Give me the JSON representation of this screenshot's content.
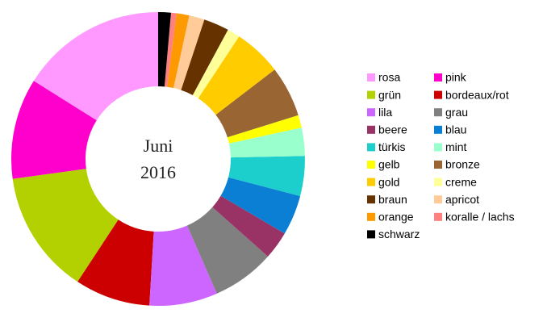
{
  "chart_data": {
    "type": "donut",
    "center_text": [
      "Juni",
      "2016"
    ],
    "categories": [
      "rosa",
      "pink",
      "grün",
      "bordeaux/rot",
      "lila",
      "grau",
      "beere",
      "blau",
      "türkis",
      "mint",
      "gelb",
      "bronze",
      "gold",
      "creme",
      "braun",
      "apricot",
      "orange",
      "koralle / lachs",
      "schwarz"
    ],
    "values": [
      16.1,
      11.1,
      13.6,
      8.3,
      7.5,
      6.9,
      3.1,
      4.4,
      4.4,
      3.1,
      1.4,
      5.6,
      5.3,
      1.4,
      2.8,
      1.7,
      1.4,
      0.6,
      1.4
    ],
    "colors": [
      "#ff99ff",
      "#ff00cc",
      "#b3d100",
      "#cc0000",
      "#cc66ff",
      "#808080",
      "#993366",
      "#0a7fd4",
      "#1ccfcc",
      "#99ffcc",
      "#ffff00",
      "#996633",
      "#ffcc00",
      "#ffff99",
      "#663300",
      "#ffcc99",
      "#ff9900",
      "#ff8080",
      "#000000"
    ],
    "legend": "right"
  }
}
